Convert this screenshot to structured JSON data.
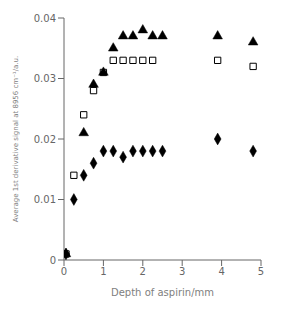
{
  "chart_data": {
    "type": "scatter",
    "xlabel": "Depth of aspirin/mm",
    "ylabel": "Average 1st derivative signal at 8956 cm⁻¹/a.u.",
    "xlim": [
      0,
      5
    ],
    "ylim": [
      0,
      0.04
    ],
    "xticks": [
      0,
      1,
      2,
      3,
      4,
      5
    ],
    "yticks": [
      0,
      0.01,
      0.02,
      0.03,
      0.04
    ],
    "grid": false,
    "series": [
      {
        "marker": "diamond",
        "color": "#000000",
        "x": [
          0.05,
          0.25,
          0.5,
          0.75,
          1.0,
          1.25,
          1.5,
          1.75,
          2.0,
          2.25,
          2.5,
          3.9,
          4.8
        ],
        "values": [
          0.001,
          0.01,
          0.014,
          0.016,
          0.018,
          0.018,
          0.017,
          0.018,
          0.018,
          0.018,
          0.018,
          0.02,
          0.018
        ]
      },
      {
        "marker": "open_square",
        "color": "#000000",
        "x": [
          0.05,
          0.25,
          0.5,
          0.75,
          1.0,
          1.25,
          1.5,
          1.75,
          2.0,
          2.25,
          3.9,
          4.8
        ],
        "values": [
          0.001,
          0.014,
          0.024,
          0.028,
          0.031,
          0.033,
          0.033,
          0.033,
          0.033,
          0.033,
          0.033,
          0.032
        ]
      },
      {
        "marker": "triangle",
        "color": "#000000",
        "x": [
          0.05,
          0.5,
          0.75,
          1.0,
          1.25,
          1.5,
          1.75,
          2.0,
          2.25,
          2.5,
          3.9,
          4.8
        ],
        "values": [
          0.001,
          0.021,
          0.029,
          0.031,
          0.035,
          0.037,
          0.037,
          0.038,
          0.037,
          0.037,
          0.037,
          0.036
        ]
      }
    ]
  }
}
